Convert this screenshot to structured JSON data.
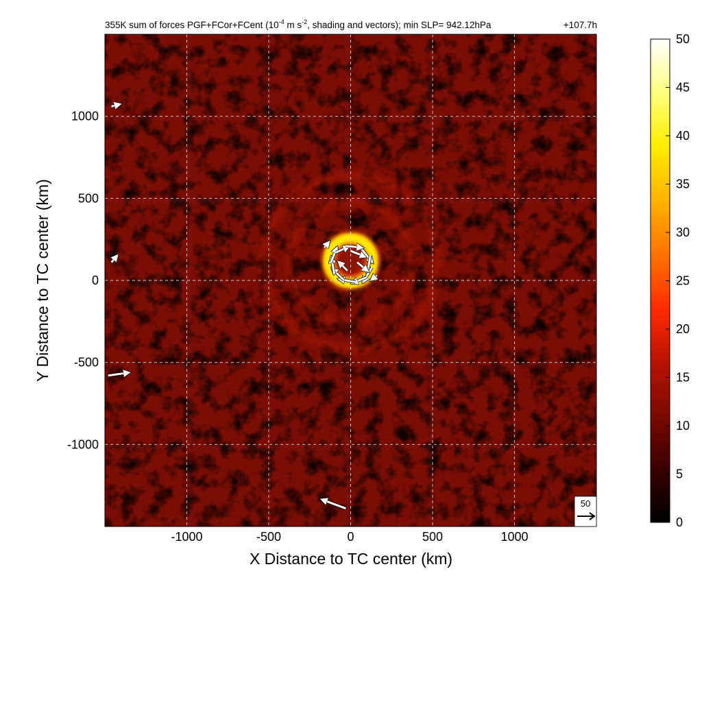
{
  "chart_data": {
    "type": "heatmap",
    "title": {
      "prefix": "355K sum of forces PGF+FCor+FCent (10",
      "exponent1": "-4",
      "middle": " m s",
      "exponent2": "-2",
      "suffix": ", shading and vectors); min SLP= 942.12hPa",
      "time": "+107.7h"
    },
    "xlabel": "X Distance to TC center (km)",
    "ylabel": "Y Distance to TC center (km)",
    "xlim": [
      -1500,
      1500
    ],
    "ylim": [
      -1500,
      1500
    ],
    "x_ticks": [
      -1000,
      -500,
      0,
      500,
      1000
    ],
    "y_ticks": [
      1000,
      500,
      0,
      -500,
      -1000
    ],
    "grid": true,
    "colorbar": {
      "min": 0,
      "max": 50,
      "ticks": [
        50,
        45,
        40,
        35,
        30,
        25,
        20,
        15,
        10,
        5,
        0
      ],
      "colors": [
        "#000000",
        "#3a0000",
        "#7a0a00",
        "#b81200",
        "#ff2a00",
        "#ff7000",
        "#ffb000",
        "#ffee00",
        "#ffff80",
        "#ffffff"
      ]
    },
    "background_level": 8,
    "features": [
      {
        "kind": "eyewall_ring",
        "center": [
          0,
          120
        ],
        "radius_km": 150,
        "peak": 40
      },
      {
        "kind": "rainband_ring",
        "center": [
          0,
          110
        ],
        "radius_km": 370,
        "peak": 12
      },
      {
        "kind": "rainband_ring",
        "center": [
          0,
          110
        ],
        "radius_km": 530,
        "peak": 10
      }
    ],
    "reference_vector": {
      "label": "50",
      "magnitude": 50
    },
    "vectors": [
      {
        "x": 0,
        "y": 180,
        "u": 25,
        "v": -10
      },
      {
        "x": 60,
        "y": 200,
        "u": 20,
        "v": -25
      },
      {
        "x": 120,
        "y": 150,
        "u": -5,
        "v": -30
      },
      {
        "x": 130,
        "y": 80,
        "u": -15,
        "v": -25
      },
      {
        "x": 100,
        "y": 20,
        "u": -25,
        "v": -10
      },
      {
        "x": 30,
        "y": -10,
        "u": -28,
        "v": 5
      },
      {
        "x": -40,
        "y": 0,
        "u": -20,
        "v": 20
      },
      {
        "x": -100,
        "y": 40,
        "u": -5,
        "v": 28
      },
      {
        "x": -120,
        "y": 110,
        "u": 10,
        "v": 25
      },
      {
        "x": -90,
        "y": 170,
        "u": 22,
        "v": 10
      },
      {
        "x": -30,
        "y": 210,
        "u": 28,
        "v": -3
      },
      {
        "x": 40,
        "y": 110,
        "u": 18,
        "v": -15
      },
      {
        "x": -20,
        "y": 60,
        "u": -15,
        "v": 15
      },
      {
        "x": 160,
        "y": 30,
        "u": -10,
        "v": -8
      },
      {
        "x": -160,
        "y": 200,
        "u": 8,
        "v": 10
      },
      {
        "x": -1480,
        "y": -580,
        "u": 35,
        "v": 5
      },
      {
        "x": -30,
        "y": -1390,
        "u": -40,
        "v": 15
      },
      {
        "x": -1460,
        "y": 110,
        "u": 10,
        "v": 12
      },
      {
        "x": -1460,
        "y": 1060,
        "u": 15,
        "v": 4
      }
    ]
  }
}
